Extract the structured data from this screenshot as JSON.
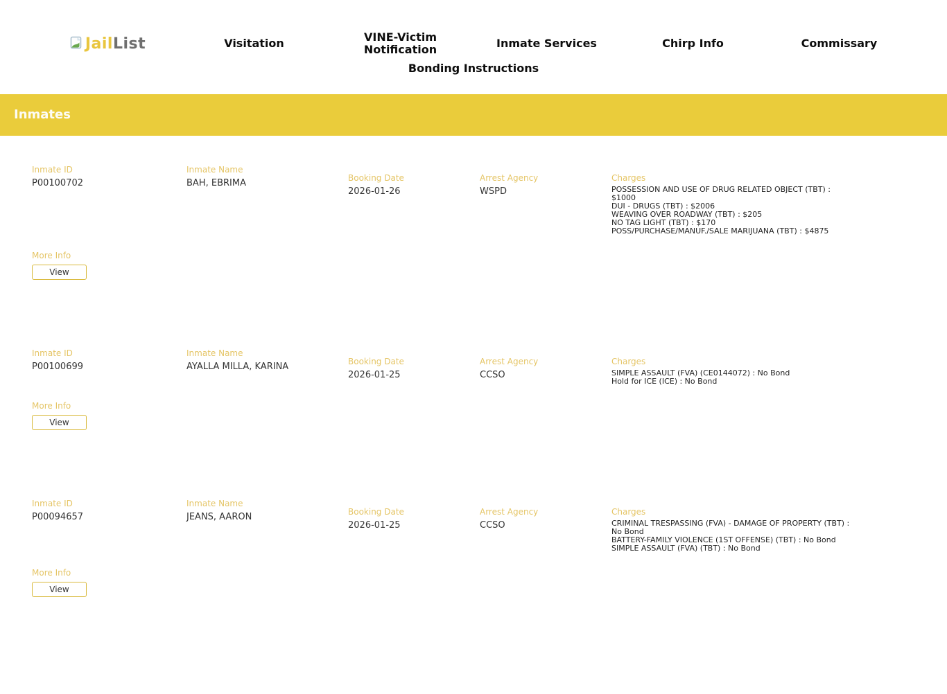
{
  "brand": {
    "name_part1": "Jail",
    "name_part2": "List"
  },
  "nav": {
    "items": [
      "Visitation",
      "VINE-Victim Notification",
      "Inmate Services",
      "Chirp Info",
      "Commissary",
      "Bonding Instructions"
    ]
  },
  "banner": {
    "title": "Inmates"
  },
  "labels": {
    "inmate_id": "Inmate ID",
    "inmate_name": "Inmate Name",
    "booking_date": "Booking Date",
    "arrest_agency": "Arrest Agency",
    "charges": "Charges",
    "more_info": "More Info",
    "view_button": "View"
  },
  "colors": {
    "banner_bg": "#eacc3b",
    "label_gold": "#e5c566",
    "logo_gold": "#e9c63e",
    "logo_gray": "#6f6f6f",
    "button_border": "#d9b93a"
  },
  "inmates": [
    {
      "id": "P00100702",
      "name": "BAH, EBRIMA",
      "booking_date": "2026-01-26",
      "arrest_agency": "WSPD",
      "charges": [
        "POSSESSION AND USE OF DRUG RELATED OBJECT (TBT) : $1000",
        "DUI - DRUGS (TBT) : $2006",
        "WEAVING OVER ROADWAY (TBT) : $205",
        "NO TAG LIGHT (TBT) : $170",
        "POSS/PURCHASE/MANUF./SALE MARIJUANA (TBT) : $4875"
      ]
    },
    {
      "id": "P00100699",
      "name": "AYALLA MILLA, KARINA",
      "booking_date": "2026-01-25",
      "arrest_agency": "CCSO",
      "charges": [
        "SIMPLE ASSAULT (FVA) (CE0144072) : No Bond",
        "Hold for ICE (ICE) : No Bond"
      ]
    },
    {
      "id": "P00094657",
      "name": "JEANS, AARON",
      "booking_date": "2026-01-25",
      "arrest_agency": "CCSO",
      "charges": [
        "CRIMINAL TRESPASSING (FVA) - DAMAGE OF PROPERTY (TBT) : No Bond",
        "BATTERY-FAMILY VIOLENCE (1ST OFFENSE) (TBT) : No Bond",
        "SIMPLE ASSAULT (FVA) (TBT) : No Bond"
      ]
    }
  ]
}
